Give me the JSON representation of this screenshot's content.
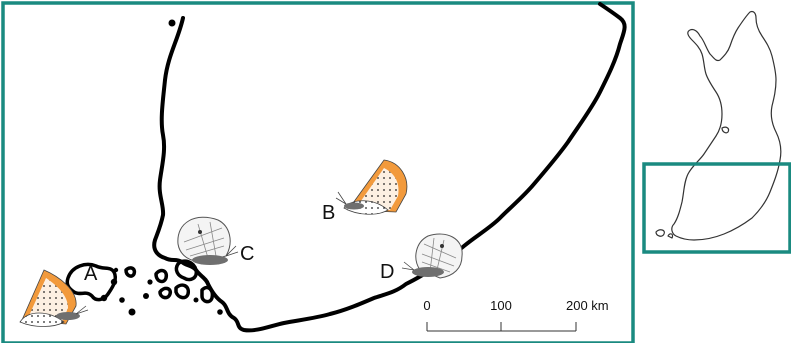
{
  "colors": {
    "frame": "#1a8a80",
    "coast": "#000000",
    "butterfly_orange": "#f29a3c",
    "butterfly_white": "#f4f4f4",
    "body_grey": "#6f6f6f"
  },
  "sites": [
    {
      "label": "A",
      "species": "orange-spotted-butterfly-icon"
    },
    {
      "label": "B",
      "species": "orange-spotted-butterfly-icon"
    },
    {
      "label": "C",
      "species": "white-veined-butterfly-icon"
    },
    {
      "label": "D",
      "species": "white-veined-butterfly-icon"
    }
  ],
  "scale_bar": {
    "ticks": [
      "0",
      "100",
      "200 km"
    ]
  },
  "inset": {
    "name": "finland-outline-icon"
  }
}
